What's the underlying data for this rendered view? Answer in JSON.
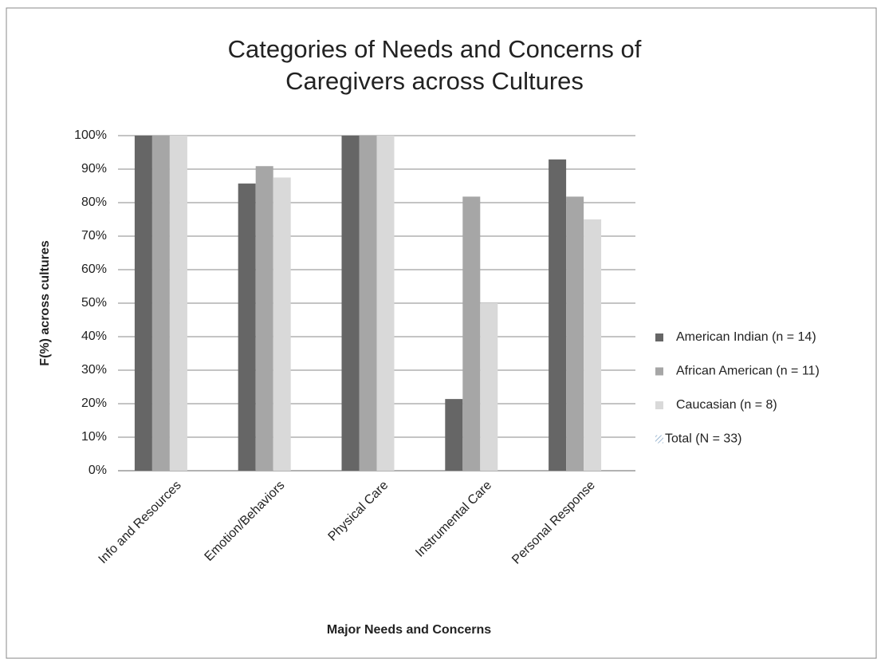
{
  "chart_data": {
    "type": "bar",
    "title": [
      "Categories of Needs and Concerns of",
      "Caregivers across Cultures"
    ],
    "x_label": "Major Needs and Concerns",
    "y_label": "F(%) across cultures",
    "categories": [
      "Info and Resources",
      "Emotion/Behaviors",
      "Physical Care",
      "Instrumental Care",
      "Personal Response"
    ],
    "series": [
      {
        "name": "American Indian (n = 14)",
        "color": "#666666",
        "values": [
          100,
          85.7,
          100,
          21.4,
          92.9
        ]
      },
      {
        "name": "African American (n = 11)",
        "color": "#a6a6a6",
        "values": [
          100,
          90.9,
          100,
          81.8,
          81.8
        ]
      },
      {
        "name": "Caucasian (n = 8)",
        "color": "#d9d9d9",
        "values": [
          100,
          87.5,
          100,
          50,
          75
        ]
      },
      {
        "name": "Total (N = 33)",
        "color": "#7fa3c4",
        "values": [
          null,
          null,
          null,
          null,
          null
        ]
      }
    ],
    "ylim": [
      0,
      100
    ],
    "yticks": [
      {
        "value": 0,
        "label": "0%"
      },
      {
        "value": 10,
        "label": "10%"
      },
      {
        "value": 20,
        "label": "20%"
      },
      {
        "value": 30,
        "label": "30%"
      },
      {
        "value": 40,
        "label": "40%"
      },
      {
        "value": 50,
        "label": "50%"
      },
      {
        "value": 60,
        "label": "60%"
      },
      {
        "value": 70,
        "label": "70%"
      },
      {
        "value": 80,
        "label": "80%"
      },
      {
        "value": 90,
        "label": "90%"
      },
      {
        "value": 100,
        "label": "100%"
      }
    ],
    "grid": true
  }
}
